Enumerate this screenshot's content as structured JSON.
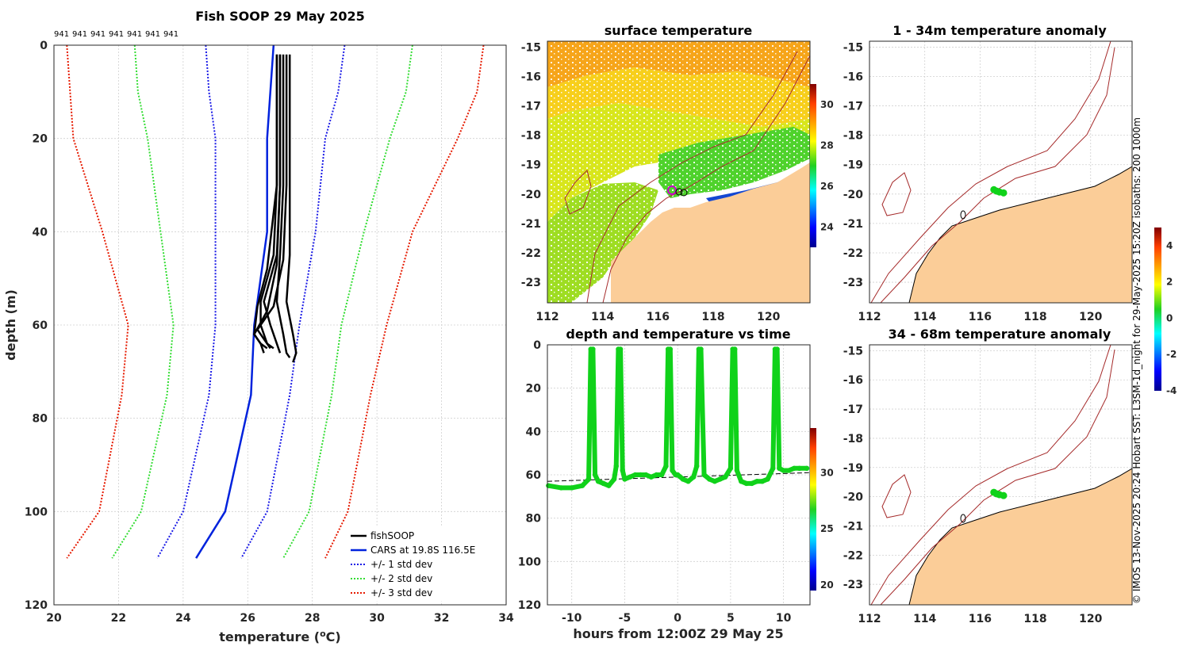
{
  "figure": {
    "credit": "© IMOS 13-Nov-2025 20:24 Hobart SST: L3SM-1d_night for 29-May-2025 15:20Z isobaths: 200  1000m"
  },
  "colors": {
    "soop": "#000000",
    "cars": "#0022dd",
    "std1": "#1a1ae6",
    "std2": "#33dd33",
    "std3": "#e61a00",
    "land": "#fbcd98",
    "isobath": "#a52a2a",
    "obs": "#10d21a"
  },
  "chart_data": [
    {
      "id": "profile",
      "type": "line",
      "title": "Fish SOOP 29 May 2025",
      "xlabel": "temperature (oC)",
      "ylabel": "depth (m)",
      "xlim": [
        20,
        34
      ],
      "ylim": [
        120,
        0
      ],
      "xticks": [
        "20",
        "22",
        "24",
        "26",
        "28",
        "30",
        "32",
        "34"
      ],
      "yticks": [
        "0",
        "20",
        "40",
        "60",
        "80",
        "100",
        "120"
      ],
      "top_labels": [
        "941",
        "941",
        "941",
        "941",
        "941",
        "941",
        "941"
      ],
      "depth": [
        0,
        10,
        20,
        40,
        60,
        75,
        100,
        110
      ],
      "series": [
        {
          "name": "CARS at 19.8S 116.5E",
          "style": "solid",
          "color": "cars",
          "values": [
            26.8,
            26.7,
            26.6,
            26.6,
            26.2,
            26.1,
            25.3,
            24.4
          ]
        },
        {
          "name": "-1 std",
          "style": "dot",
          "color": "std1",
          "values": [
            24.7,
            24.8,
            25.0,
            25.0,
            25.0,
            24.8,
            24.0,
            23.2
          ]
        },
        {
          "name": "+1 std",
          "style": "dot",
          "color": "std1",
          "values": [
            29.0,
            28.8,
            28.4,
            28.1,
            27.6,
            27.3,
            26.6,
            25.8
          ]
        },
        {
          "name": "-2 std",
          "style": "dot",
          "color": "std2",
          "values": [
            22.5,
            22.6,
            22.9,
            23.3,
            23.7,
            23.5,
            22.7,
            21.8
          ]
        },
        {
          "name": "+2 std",
          "style": "dot",
          "color": "std2",
          "values": [
            31.1,
            30.9,
            30.4,
            29.6,
            28.9,
            28.6,
            27.9,
            27.1
          ]
        },
        {
          "name": "-3 std",
          "style": "dot",
          "color": "std3",
          "values": [
            20.4,
            20.5,
            20.6,
            21.5,
            22.3,
            22.1,
            21.4,
            20.4
          ]
        },
        {
          "name": "+3 std",
          "style": "dot",
          "color": "std3",
          "values": [
            33.3,
            33.1,
            32.5,
            31.1,
            30.3,
            29.8,
            29.1,
            28.4
          ]
        }
      ],
      "soop_profiles": [
        {
          "temp": [
            27.3,
            27.3,
            27.3,
            27.3,
            27.2,
            27.4,
            27.5,
            27.4
          ],
          "depth": [
            2,
            15,
            30,
            45,
            55,
            62,
            66,
            68
          ]
        },
        {
          "temp": [
            27.1,
            27.1,
            27.1,
            27.0,
            26.9,
            27.1,
            27.2,
            27.3
          ],
          "depth": [
            2,
            15,
            30,
            45,
            55,
            62,
            66,
            67
          ]
        },
        {
          "temp": [
            27.0,
            27.0,
            27.0,
            26.9,
            26.5,
            26.7,
            26.9,
            27.0
          ],
          "depth": [
            2,
            15,
            30,
            45,
            55,
            60,
            64,
            66
          ]
        },
        {
          "temp": [
            26.9,
            26.9,
            26.9,
            26.8,
            26.4,
            26.4,
            26.6,
            26.8
          ],
          "depth": [
            2,
            15,
            30,
            45,
            55,
            60,
            64,
            65
          ]
        },
        {
          "temp": [
            27.2,
            27.2,
            27.2,
            27.1,
            26.8,
            26.3,
            26.5,
            26.7
          ],
          "depth": [
            2,
            15,
            30,
            46,
            56,
            61,
            63,
            65
          ]
        },
        {
          "temp": [
            27.0,
            27.0,
            27.0,
            26.9,
            26.6,
            26.2,
            26.4,
            26.6
          ],
          "depth": [
            2,
            15,
            30,
            47,
            57,
            62,
            64,
            65
          ]
        },
        {
          "temp": [
            26.9,
            26.9,
            26.9,
            26.6,
            26.3,
            26.2,
            26.4,
            26.5
          ],
          "depth": [
            2,
            15,
            30,
            48,
            56,
            62,
            64,
            66
          ]
        }
      ],
      "legend": {
        "position": "bottom-right",
        "entries": [
          {
            "label": "fishSOOP",
            "color": "soop",
            "style": "solid"
          },
          {
            "label": "CARS at 19.8S 116.5E",
            "color": "cars",
            "style": "solid"
          },
          {
            "label": "+/- 1 std dev",
            "color": "std1",
            "style": "dot"
          },
          {
            "label": "+/- 2 std dev",
            "color": "std2",
            "style": "dot"
          },
          {
            "label": "+/- 3 std dev",
            "color": "std3",
            "style": "dot"
          }
        ]
      }
    },
    {
      "id": "sst_map",
      "type": "heatmap",
      "title": "surface temperature",
      "xlim": [
        112,
        121.5
      ],
      "ylim": [
        -23.7,
        -14.8
      ],
      "xticks": [
        "112",
        "114",
        "116",
        "118",
        "120"
      ],
      "yticks": [
        "-15",
        "-16",
        "-17",
        "-18",
        "-19",
        "-20",
        "-21",
        "-22",
        "-23"
      ],
      "colorbar": {
        "range": [
          23,
          31
        ],
        "ticks": [
          "30",
          "28",
          "26",
          "24"
        ]
      }
    },
    {
      "id": "depth_time",
      "type": "scatter",
      "title": "depth and temperature vs time",
      "xlabel": "hours from 12:00Z 29 May 25",
      "xlim": [
        -12.3,
        12.5
      ],
      "ylim": [
        120,
        0
      ],
      "xticks": [
        "-10",
        "-5",
        "0",
        "5",
        "10"
      ],
      "yticks": [
        "0",
        "20",
        "40",
        "60",
        "80",
        "100",
        "120"
      ],
      "colorbar": {
        "range": [
          19.5,
          34
        ],
        "ticks": [
          "30",
          "25",
          "20"
        ]
      },
      "hours": [
        -12.2,
        -11,
        -10,
        -9,
        -8.4,
        -8.2,
        -8.0,
        -7.8,
        -7.5,
        -7,
        -6.5,
        -6,
        -5.8,
        -5.6,
        -5.4,
        -5.2,
        -5.0,
        -4.5,
        -4,
        -3.5,
        -3,
        -2.5,
        -2,
        -1.5,
        -1.1,
        -0.9,
        -0.7,
        -0.5,
        -0.2,
        0,
        0.5,
        1,
        1.5,
        1.8,
        2.0,
        2.2,
        2.5,
        3,
        3.5,
        4,
        4.5,
        5.0,
        5.2,
        5.4,
        5.6,
        6,
        6.5,
        7,
        7.5,
        8,
        8.5,
        9.0,
        9.2,
        9.4,
        9.6,
        10,
        10.5,
        11,
        11.5,
        12.2
      ],
      "depth": [
        65,
        66,
        66,
        65,
        62,
        2,
        2,
        60,
        63,
        64,
        65,
        62,
        56,
        2,
        2,
        58,
        62,
        61,
        60,
        60,
        60,
        61,
        60,
        60,
        56,
        2,
        2,
        58,
        60,
        60,
        62,
        63,
        61,
        56,
        2,
        2,
        60,
        62,
        63,
        62,
        61,
        57,
        2,
        2,
        58,
        63,
        64,
        64,
        63,
        63,
        62,
        57,
        2,
        2,
        57,
        58,
        58,
        57,
        57,
        57
      ],
      "mean_depth_line": {
        "from": [
          -12.3,
          63
        ],
        "to": [
          12.5,
          59
        ]
      }
    },
    {
      "id": "anom_1_34",
      "type": "scatter",
      "title": "1 - 34m temperature anomaly",
      "xlim": [
        112,
        121.5
      ],
      "ylim": [
        -23.7,
        -14.8
      ],
      "xticks": [
        "112",
        "114",
        "116",
        "118",
        "120"
      ],
      "yticks": [
        "-15",
        "-16",
        "-17",
        "-18",
        "-19",
        "-20",
        "-21",
        "-22",
        "-23"
      ],
      "points": {
        "lon": [
          116.5,
          116.6,
          116.7,
          116.85
        ],
        "lat": [
          -19.85,
          -19.9,
          -19.93,
          -19.96
        ],
        "anomaly": [
          0,
          0,
          0,
          0
        ]
      }
    },
    {
      "id": "anom_34_68",
      "type": "scatter",
      "title": "34 - 68m temperature anomaly",
      "xlim": [
        112,
        121.5
      ],
      "ylim": [
        -23.7,
        -14.8
      ],
      "xticks": [
        "112",
        "114",
        "116",
        "118",
        "120"
      ],
      "yticks": [
        "-15",
        "-16",
        "-17",
        "-18",
        "-19",
        "-20",
        "-21",
        "-22",
        "-23"
      ],
      "points": {
        "lon": [
          116.5,
          116.6,
          116.7,
          116.85
        ],
        "lat": [
          -19.85,
          -19.9,
          -19.93,
          -19.96
        ],
        "anomaly": [
          0,
          0,
          0,
          0
        ]
      },
      "colorbar": {
        "range": [
          -4,
          5
        ],
        "ticks": [
          "4",
          "2",
          "0",
          "-2",
          "-4"
        ]
      }
    }
  ]
}
